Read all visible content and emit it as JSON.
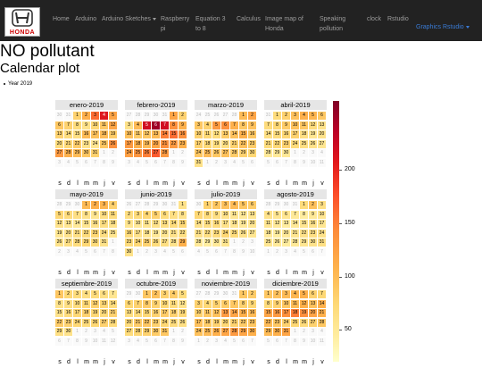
{
  "navbar": {
    "logo_text": "HONDA",
    "items": [
      {
        "label": "Home"
      },
      {
        "label": "Arduino"
      },
      {
        "label": "Arduino Sketches"
      },
      {
        "label": "Raspberry pi"
      },
      {
        "label": "Equation 3 to 8"
      },
      {
        "label": "Calculus"
      },
      {
        "label": "Image map of Honda"
      },
      {
        "label": "Speaking pollution"
      },
      {
        "label": "clock"
      },
      {
        "label": "Rstudio"
      },
      {
        "label": "Graphics Rstudio"
      }
    ]
  },
  "page": {
    "title": "NO pollutant",
    "subtitle": "Calendar plot",
    "bullet": "Year 2019"
  },
  "chart_data": {
    "type": "heatmap",
    "year": 2019,
    "months": [
      {
        "name": "enero-2019",
        "first_weekday": 2,
        "days": 31,
        "prev_days": 31,
        "values": [
          80,
          110,
          160,
          210,
          120,
          90,
          80,
          70,
          60,
          75,
          90,
          120,
          80,
          70,
          65,
          100,
          95,
          100,
          85,
          70,
          75,
          85,
          60,
          55,
          90,
          140,
          130,
          110,
          100,
          90,
          80
        ]
      },
      {
        "name": "febrero-2019",
        "first_weekday": 5,
        "days": 28,
        "prev_days": 31,
        "values": [
          120,
          80,
          60,
          100,
          220,
          250,
          220,
          140,
          110,
          95,
          85,
          90,
          100,
          150,
          160,
          140,
          130,
          110,
          100,
          120,
          140,
          130,
          110,
          125,
          135,
          150,
          170,
          130
        ]
      },
      {
        "name": "marzo-2019",
        "first_weekday": 5,
        "days": 31,
        "prev_days": 28,
        "values": [
          100,
          120,
          90,
          80,
          130,
          140,
          110,
          90,
          95,
          80,
          75,
          70,
          85,
          95,
          110,
          90,
          80,
          75,
          70,
          65,
          80,
          95,
          85,
          90,
          100,
          90,
          95,
          85,
          80,
          75,
          60
        ]
      },
      {
        "name": "abril-2019",
        "first_weekday": 1,
        "days": 30,
        "prev_days": 31,
        "values": [
          70,
          80,
          95,
          110,
          105,
          90,
          70,
          75,
          85,
          95,
          90,
          70,
          60,
          65,
          70,
          75,
          80,
          65,
          55,
          60,
          70,
          75,
          80,
          70,
          65,
          60,
          55,
          50,
          50,
          50
        ]
      },
      {
        "name": "mayo-2019",
        "first_weekday": 3,
        "days": 31,
        "prev_days": 30,
        "values": [
          100,
          110,
          105,
          80,
          75,
          70,
          65,
          60,
          55,
          65,
          70,
          60,
          55,
          50,
          55,
          60,
          65,
          60,
          55,
          60,
          65,
          70,
          75,
          65,
          55,
          60,
          65,
          70,
          75,
          70,
          60
        ]
      },
      {
        "name": "junio-2019",
        "first_weekday": 6,
        "days": 30,
        "prev_days": 31,
        "values": [
          60,
          65,
          70,
          75,
          80,
          70,
          65,
          60,
          55,
          50,
          55,
          60,
          65,
          70,
          75,
          70,
          60,
          55,
          50,
          55,
          60,
          65,
          70,
          75,
          80,
          70,
          65,
          60,
          110,
          60
        ]
      },
      {
        "name": "julio-2019",
        "first_weekday": 1,
        "days": 31,
        "prev_days": 30,
        "values": [
          80,
          90,
          95,
          100,
          90,
          85,
          75,
          70,
          65,
          60,
          55,
          50,
          55,
          60,
          65,
          70,
          60,
          55,
          50,
          55,
          60,
          65,
          70,
          75,
          70,
          60,
          55,
          50,
          45,
          50,
          55
        ]
      },
      {
        "name": "agosto-2019",
        "first_weekday": 4,
        "days": 31,
        "prev_days": 31,
        "values": [
          70,
          95,
          65,
          60,
          55,
          55,
          50,
          45,
          50,
          55,
          55,
          50,
          45,
          50,
          55,
          60,
          55,
          50,
          45,
          50,
          55,
          60,
          65,
          60,
          55,
          50,
          45,
          50,
          55,
          60,
          65
        ]
      },
      {
        "name": "septiembre-2019",
        "first_weekday": 0,
        "days": 30,
        "prev_days": 31,
        "values": [
          90,
          75,
          70,
          65,
          70,
          65,
          55,
          60,
          65,
          70,
          75,
          80,
          75,
          70,
          60,
          70,
          75,
          80,
          75,
          70,
          80,
          85,
          80,
          75,
          70,
          75,
          80,
          70,
          65,
          60
        ]
      },
      {
        "name": "octubre-2019",
        "first_weekday": 2,
        "days": 31,
        "prev_days": 30,
        "values": [
          90,
          95,
          80,
          85,
          70,
          75,
          80,
          85,
          80,
          75,
          70,
          60,
          65,
          70,
          75,
          80,
          85,
          80,
          75,
          70,
          85,
          90,
          80,
          75,
          70,
          65,
          70,
          75,
          80,
          85,
          90
        ]
      },
      {
        "name": "noviembre-2019",
        "first_weekday": 5,
        "days": 30,
        "prev_days": 31,
        "values": [
          90,
          85,
          80,
          75,
          80,
          85,
          90,
          80,
          75,
          80,
          90,
          95,
          130,
          120,
          110,
          100,
          95,
          85,
          80,
          75,
          80,
          85,
          90,
          95,
          100,
          110,
          120,
          130,
          120,
          110
        ]
      },
      {
        "name": "diciembre-2019",
        "first_weekday": 0,
        "days": 31,
        "prev_days": 30,
        "values": [
          90,
          95,
          100,
          105,
          110,
          80,
          75,
          70,
          80,
          90,
          100,
          110,
          95,
          110,
          120,
          130,
          140,
          150,
          140,
          120,
          110,
          100,
          90,
          80,
          75,
          70,
          80,
          90,
          100,
          110,
          120
        ]
      }
    ],
    "weekday_labels": [
      "s",
      "d",
      "l",
      "m",
      "m",
      "j",
      "v"
    ],
    "colorbar": {
      "ticks": [
        200,
        150,
        100,
        50
      ],
      "range": [
        20,
        265
      ]
    }
  }
}
